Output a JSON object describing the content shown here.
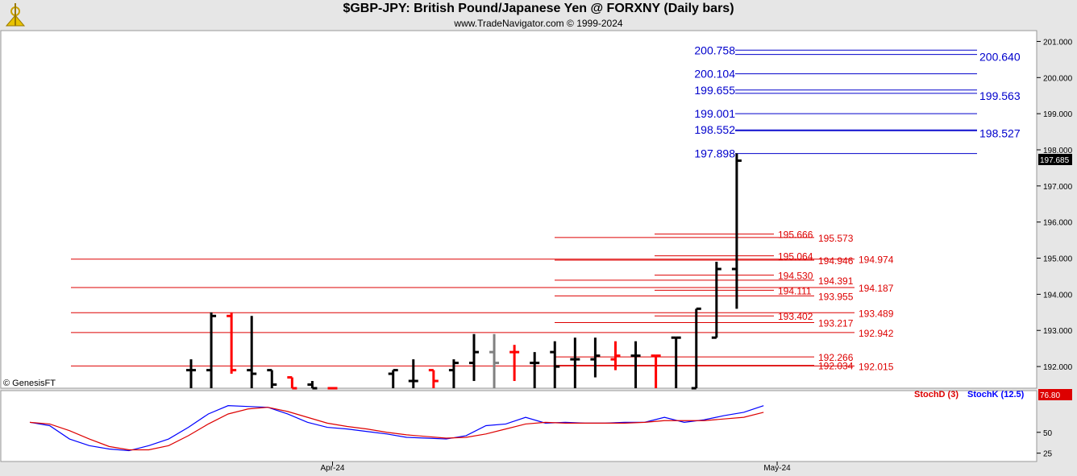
{
  "header": {
    "title": "$GBP-JPY:  British Pound/Japanese Yen @ FORXNY  (Daily bars)",
    "subtitle": "www.TradeNavigator.com © 1999-2024"
  },
  "colors": {
    "background": "#ffffff",
    "frame": "#e6e6e6",
    "up_bar": "#000000",
    "down_bar": "#ff0000",
    "neutral_bar": "#808080",
    "resistance_line": "#0000cc",
    "support_line": "#dd0000",
    "stoch_k": "#0000ff",
    "stoch_d": "#dd0000"
  },
  "chart_data": [
    {
      "type": "ohlc",
      "title": "$GBP-JPY:  British Pound/Japanese Yen @ FORXNY  (Daily bars)",
      "ylim": [
        191.4,
        201.3
      ],
      "y_ticks": [
        "192.000",
        "193.000",
        "194.000",
        "195.000",
        "196.000",
        "197.000",
        "198.000",
        "199.000",
        "200.000",
        "201.000"
      ],
      "x_labels": [
        {
          "label": "Apr-24",
          "bar_index": 7
        },
        {
          "label": "May-24",
          "bar_index": 29
        }
      ],
      "last_price": "197.685",
      "watermark": "© GenesisFT",
      "bars": [
        {
          "i": 0,
          "o": 191.9,
          "h": 192.2,
          "l": 191.4,
          "c": 191.9,
          "color": "up"
        },
        {
          "i": 1,
          "o": 191.9,
          "h": 193.5,
          "l": 191.4,
          "c": 193.4,
          "color": "up"
        },
        {
          "i": 2,
          "o": 193.4,
          "h": 193.5,
          "l": 191.8,
          "c": 191.9,
          "color": "down"
        },
        {
          "i": 3,
          "o": 191.9,
          "h": 193.4,
          "l": 191.4,
          "c": 191.8,
          "color": "up"
        },
        {
          "i": 4,
          "o": 191.9,
          "h": 191.9,
          "l": 191.4,
          "c": 191.5,
          "color": "up"
        },
        {
          "i": 5,
          "o": 191.7,
          "h": 191.7,
          "l": 191.4,
          "c": 191.4,
          "color": "down"
        },
        {
          "i": 6,
          "o": 191.5,
          "h": 191.6,
          "l": 191.4,
          "c": 191.4,
          "color": "up"
        },
        {
          "i": 7,
          "o": 191.4,
          "h": 191.4,
          "l": 191.4,
          "c": 191.4,
          "color": "down"
        },
        {
          "i": 10,
          "o": 191.8,
          "h": 191.9,
          "l": 191.4,
          "c": 191.9,
          "color": "up"
        },
        {
          "i": 11,
          "o": 191.6,
          "h": 192.2,
          "l": 191.4,
          "c": 191.6,
          "color": "up"
        },
        {
          "i": 12,
          "o": 191.9,
          "h": 191.9,
          "l": 191.4,
          "c": 191.6,
          "color": "down"
        },
        {
          "i": 13,
          "o": 191.9,
          "h": 192.2,
          "l": 191.4,
          "c": 192.1,
          "color": "up"
        },
        {
          "i": 14,
          "o": 192.1,
          "h": 192.9,
          "l": 191.6,
          "c": 192.4,
          "color": "up"
        },
        {
          "i": 15,
          "o": 192.4,
          "h": 192.9,
          "l": 191.4,
          "c": 192.1,
          "color": "neutral"
        },
        {
          "i": 16,
          "o": 192.4,
          "h": 192.6,
          "l": 191.6,
          "c": 192.4,
          "color": "down"
        },
        {
          "i": 17,
          "o": 192.1,
          "h": 192.4,
          "l": 191.4,
          "c": 192.1,
          "color": "up"
        },
        {
          "i": 18,
          "o": 192.4,
          "h": 192.7,
          "l": 191.4,
          "c": 192.0,
          "color": "up"
        },
        {
          "i": 19,
          "o": 192.2,
          "h": 192.8,
          "l": 191.4,
          "c": 192.2,
          "color": "up"
        },
        {
          "i": 20,
          "o": 192.2,
          "h": 192.8,
          "l": 191.7,
          "c": 192.3,
          "color": "up"
        },
        {
          "i": 21,
          "o": 192.2,
          "h": 192.7,
          "l": 191.9,
          "c": 192.3,
          "color": "down"
        },
        {
          "i": 22,
          "o": 192.3,
          "h": 192.7,
          "l": 191.4,
          "c": 192.3,
          "color": "up"
        },
        {
          "i": 23,
          "o": 192.3,
          "h": 192.3,
          "l": 191.4,
          "c": 192.3,
          "color": "down"
        },
        {
          "i": 24,
          "o": 192.8,
          "h": 192.8,
          "l": 191.4,
          "c": 192.8,
          "color": "up"
        },
        {
          "i": 25,
          "o": 191.4,
          "h": 193.6,
          "l": 191.4,
          "c": 193.6,
          "color": "up"
        },
        {
          "i": 26,
          "o": 192.8,
          "h": 194.9,
          "l": 192.8,
          "c": 194.7,
          "color": "up"
        },
        {
          "i": 27,
          "o": 194.7,
          "h": 197.9,
          "l": 193.6,
          "c": 197.7,
          "color": "up"
        }
      ],
      "resistance_levels": [
        {
          "left_label": "200.758",
          "right_label": "200.640",
          "value": 200.758,
          "value2": 200.64
        },
        {
          "left_label": "200.104",
          "right_label": "",
          "value": 200.104
        },
        {
          "left_label": "199.655",
          "right_label": "199.563",
          "value": 199.655,
          "value2": 199.563
        },
        {
          "left_label": "199.001",
          "right_label": "",
          "value": 199.001
        },
        {
          "left_label": "198.552",
          "right_label": "198.527",
          "value": 198.552,
          "value2": 198.527
        },
        {
          "left_label": "197.898",
          "right_label": "",
          "value": 197.898
        }
      ],
      "support_levels": [
        {
          "label": "195.666",
          "value": 195.666,
          "start": "short"
        },
        {
          "label": "195.573",
          "value": 195.573,
          "start": "mid"
        },
        {
          "label": "195.064",
          "value": 195.064,
          "start": "short"
        },
        {
          "label": "194.946",
          "value": 194.946,
          "start": "mid"
        },
        {
          "label": "194.974",
          "value": 194.974,
          "start": "long"
        },
        {
          "label": "194.530",
          "value": 194.53,
          "start": "short"
        },
        {
          "label": "194.391",
          "value": 194.391,
          "start": "mid"
        },
        {
          "label": "194.187",
          "value": 194.187,
          "start": "long"
        },
        {
          "label": "194.111",
          "value": 194.111,
          "start": "short"
        },
        {
          "label": "193.955",
          "value": 193.955,
          "start": "mid"
        },
        {
          "label": "193.489",
          "value": 193.489,
          "start": "long"
        },
        {
          "label": "193.402",
          "value": 193.402,
          "start": "short"
        },
        {
          "label": "193.217",
          "value": 193.217,
          "start": "mid"
        },
        {
          "label": "192.942",
          "value": 192.942,
          "start": "long"
        },
        {
          "label": "192.266",
          "value": 192.266,
          "start": "mid"
        },
        {
          "label": "192.034",
          "value": 192.034,
          "start": "mid"
        },
        {
          "label": "192.015",
          "value": 192.015,
          "start": "long"
        }
      ]
    },
    {
      "type": "line",
      "title": "",
      "ylim": [
        15,
        100
      ],
      "y_ticks": [
        "25",
        "50"
      ],
      "legend": [
        "StochD (3)",
        "StochK (12.5)"
      ],
      "last_value": "76.80",
      "series": [
        {
          "name": "StochK (12.5)",
          "values": [
            62,
            58,
            42,
            34,
            30,
            28,
            34,
            42,
            56,
            72,
            82,
            81,
            80,
            72,
            62,
            56,
            54,
            51,
            48,
            44,
            43,
            42,
            46,
            58,
            60,
            68,
            61,
            62,
            61,
            61,
            62,
            62,
            68,
            62,
            65,
            70,
            74,
            82
          ]
        },
        {
          "name": "StochD (3)",
          "values": [
            62,
            60,
            52,
            42,
            33,
            29,
            29,
            34,
            46,
            60,
            72,
            78,
            80,
            75,
            68,
            61,
            57,
            54,
            50,
            47,
            45,
            43,
            44,
            48,
            54,
            60,
            62,
            61,
            61,
            61,
            61,
            62,
            64,
            64,
            64,
            66,
            68,
            74
          ]
        }
      ]
    }
  ]
}
